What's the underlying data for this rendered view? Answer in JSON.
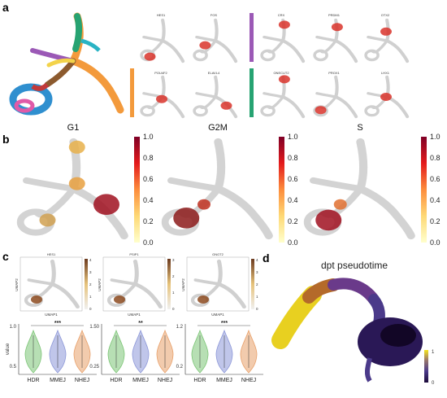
{
  "panels": {
    "a": "a",
    "b": "b",
    "c": "c",
    "d": "d"
  },
  "colors": {
    "purple_bar": "#9b59b6",
    "orange_bar": "#f39a3c",
    "green_bar": "#27a372",
    "grey": "#d3d3d3",
    "heat_low": "#ffffcc",
    "heat_high": "#800026"
  },
  "panel_a": {
    "genes_row1": [
      "HES1",
      "FOS",
      "CRX",
      "PRDM1",
      "OTX2"
    ],
    "genes_row2": [
      "POU4F2",
      "ELAVL4",
      "ONECUT2",
      "PROX1",
      "LHX1"
    ]
  },
  "panel_b": {
    "titles": [
      "G1",
      "G2M",
      "S"
    ],
    "colorbar_ticks": [
      "1.0",
      "0.8",
      "0.6",
      "0.4",
      "0.2",
      "0.0"
    ]
  },
  "panel_c": {
    "genes": [
      "HES1",
      "PSIP1",
      "GNGT2"
    ],
    "umap_x": "UMAP1",
    "umap_y": "UMAP2",
    "ylabel": "value",
    "violin_groups": [
      "HDR",
      "MMEJ",
      "NHEJ"
    ],
    "violin_colors": [
      "#7cc576",
      "#8c97d8",
      "#e8a06a"
    ],
    "ticks": [
      [
        "1.0",
        "0.5"
      ],
      [
        "1.50",
        "0.25"
      ],
      [
        "1.2",
        "0.2"
      ]
    ],
    "significance": [
      "***",
      "**",
      "***"
    ],
    "umap_cbar_ticks": [
      [
        "4",
        "3",
        "2",
        "1",
        "0"
      ],
      [
        "3",
        "2",
        "1",
        "0"
      ],
      [
        "4",
        "3",
        "2",
        "1",
        "0"
      ]
    ]
  },
  "panel_d": {
    "title": "dpt pseudotime",
    "colorbar_ticks": [
      "1",
      "0"
    ]
  }
}
